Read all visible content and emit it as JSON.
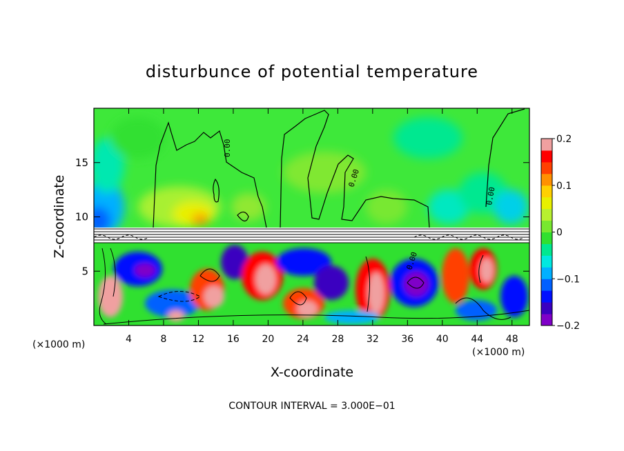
{
  "chart_data": {
    "type": "heatmap",
    "title": "disturbunce of potential temperature",
    "xlabel": "X-coordinate",
    "ylabel": "Z-coordinate",
    "x_unit": "(×1000 m)",
    "x_unit_right": "(×1000 m)",
    "xlim": [
      0,
      50
    ],
    "ylim": [
      0,
      20
    ],
    "x_ticks": [
      4,
      8,
      12,
      16,
      20,
      24,
      28,
      32,
      36,
      40,
      44,
      48
    ],
    "y_ticks": [
      5,
      10,
      15
    ],
    "colorbar": {
      "range": [
        -0.2,
        0.2
      ],
      "tick_labels": [
        "0.2",
        "0.1",
        "0",
        "−0.1",
        "−0.2"
      ],
      "tick_values": [
        0.2,
        0.1,
        0,
        -0.1,
        -0.2
      ],
      "colors": [
        "#7f00c8",
        "#3a00c0",
        "#0010ff",
        "#0060ff",
        "#00b0ff",
        "#00e8e0",
        "#00e890",
        "#30e030",
        "#78e830",
        "#b8f030",
        "#e8f000",
        "#ffd000",
        "#ff9000",
        "#ff4000",
        "#ff0000",
        "#f0a0a0"
      ]
    },
    "contour_labels": [
      "0.00",
      "0.00",
      "0.00",
      "0.00"
    ],
    "footer": "CONTOUR INTERVAL = 3.000E−01"
  }
}
